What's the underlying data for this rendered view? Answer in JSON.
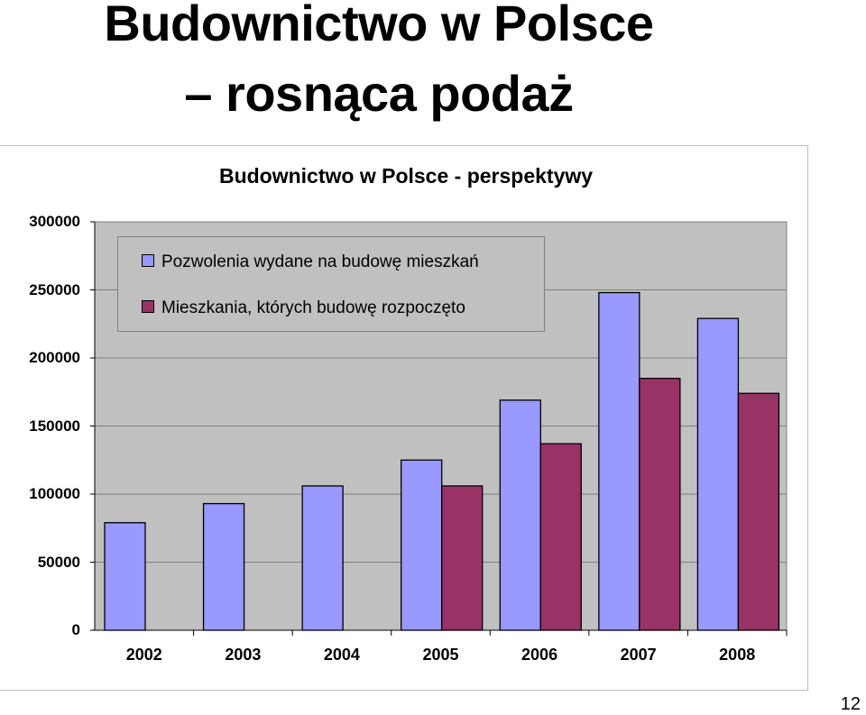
{
  "slide": {
    "title_line1": "Budownictwo w Polsce",
    "title_line2": "– rosnąca podaż",
    "page_number": "12"
  },
  "chart_data": {
    "type": "bar",
    "title": "Budownictwo w Polsce - perspektywy",
    "categories": [
      "2002",
      "2003",
      "2004",
      "2005",
      "2006",
      "2007",
      "2008"
    ],
    "series": [
      {
        "name": "Pozwolenia wydane na budowę mieszkań",
        "color": "#9999ff",
        "values": [
          79000,
          93000,
          106000,
          125000,
          169000,
          248000,
          229000
        ]
      },
      {
        "name": "Mieszkania, których budowę rozpoczęto",
        "color": "#993366",
        "values": [
          null,
          null,
          null,
          106000,
          137000,
          185000,
          174000
        ]
      }
    ],
    "ylim": [
      0,
      300000
    ],
    "yticks": [
      "0",
      "50000",
      "100000",
      "150000",
      "200000",
      "250000",
      "300000"
    ],
    "plot_background": "#c0c0c0",
    "grid": true,
    "legend_position": "top-left"
  }
}
